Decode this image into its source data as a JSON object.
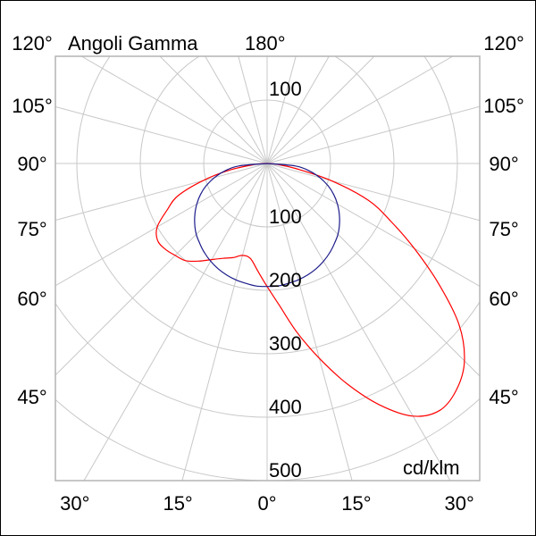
{
  "chart_data": {
    "type": "line",
    "polar": true,
    "title": "Angoli Gamma",
    "unit_label": "cd/klm",
    "top_angle_label": "180°",
    "radial_ticks": [
      100,
      200,
      300,
      400,
      500
    ],
    "upper_radial_label": "100",
    "side_angle_labels": [
      "120°",
      "105°",
      "90°",
      "75°",
      "60°",
      "45°"
    ],
    "side_angle_values": [
      120,
      105,
      90,
      75,
      60,
      45
    ],
    "bottom_angle_labels": [
      "30°",
      "15°",
      "0°",
      "15°",
      "30°"
    ],
    "bottom_angle_values": [
      -30,
      -15,
      0,
      15,
      30
    ],
    "angle_step": 15,
    "radial_step": 100,
    "grid": true,
    "series": [
      {
        "color": "#ff0000",
        "gamma": [
          -90,
          -85,
          -80,
          -75,
          -70,
          -65,
          -60,
          -55,
          -50,
          -45,
          -40,
          -35,
          -30,
          -25,
          -20,
          -15,
          -10,
          -5,
          0,
          5,
          10,
          15,
          20,
          25,
          30,
          35,
          40,
          45,
          50,
          55,
          60,
          65,
          70,
          75,
          80,
          85,
          90
        ],
        "values": [
          0,
          20,
          60,
          105,
          150,
          174,
          200,
          211,
          210,
          205,
          200,
          188,
          175,
          165,
          158,
          150,
          152,
          170,
          194,
          225,
          270,
          318,
          370,
          420,
          460,
          475,
          465,
          440,
          395,
          330,
          268,
          215,
          170,
          105,
          45,
          15,
          0
        ]
      },
      {
        "color": "#1c1c8c",
        "gamma": [
          -90,
          -85,
          -80,
          -75,
          -70,
          -65,
          -60,
          -55,
          -50,
          -45,
          -40,
          -35,
          -30,
          -25,
          -20,
          -15,
          -10,
          -5,
          0,
          5,
          10,
          15,
          20,
          25,
          30,
          35,
          40,
          45,
          50,
          55,
          60,
          65,
          70,
          75,
          80,
          85,
          90
        ],
        "values": [
          0,
          45,
          68,
          86,
          102,
          116,
          128,
          139,
          149,
          158,
          165,
          172,
          178,
          183,
          187,
          190,
          192,
          194,
          194,
          194,
          192,
          190,
          187,
          183,
          178,
          172,
          165,
          158,
          149,
          139,
          128,
          116,
          102,
          86,
          68,
          45,
          0
        ]
      }
    ]
  }
}
